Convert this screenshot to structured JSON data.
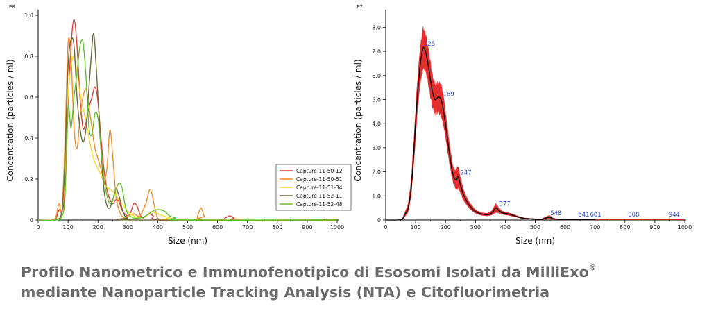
{
  "chart_data": [
    {
      "type": "line",
      "xlabel": "Size (nm)",
      "ylabel": "Concentration (particles / ml)",
      "y_exponent": "E8",
      "xlim": [
        0,
        1000
      ],
      "ylim": [
        0,
        1.0
      ],
      "x_ticks": [
        "0",
        "100",
        "200",
        "300",
        "400",
        "500",
        "600",
        "700",
        "800",
        "900",
        "1000"
      ],
      "y_ticks": [
        "0",
        "0.2",
        "0.4",
        "0.6",
        "0.8",
        "1.0"
      ],
      "legend_position": "bottom-right",
      "series": [
        {
          "name": "Capture-11-50-12",
          "color": "#e53935",
          "points": [
            [
              0,
              0
            ],
            [
              50,
              0
            ],
            [
              60,
              0.01
            ],
            [
              70,
              0.05
            ],
            [
              80,
              0.04
            ],
            [
              90,
              0.15
            ],
            [
              100,
              0.55
            ],
            [
              110,
              0.85
            ],
            [
              120,
              0.98
            ],
            [
              130,
              0.85
            ],
            [
              140,
              0.6
            ],
            [
              150,
              0.45
            ],
            [
              160,
              0.48
            ],
            [
              170,
              0.55
            ],
            [
              180,
              0.6
            ],
            [
              190,
              0.65
            ],
            [
              200,
              0.58
            ],
            [
              210,
              0.4
            ],
            [
              220,
              0.25
            ],
            [
              230,
              0.15
            ],
            [
              240,
              0.1
            ],
            [
              250,
              0.08
            ],
            [
              260,
              0.1
            ],
            [
              270,
              0.09
            ],
            [
              280,
              0.05
            ],
            [
              290,
              0.03
            ],
            [
              300,
              0.02
            ],
            [
              310,
              0.04
            ],
            [
              320,
              0.08
            ],
            [
              330,
              0.07
            ],
            [
              340,
              0.03
            ],
            [
              350,
              0.01
            ],
            [
              370,
              0.03
            ],
            [
              385,
              0.02
            ],
            [
              400,
              0
            ],
            [
              600,
              0
            ],
            [
              625,
              0.01
            ],
            [
              640,
              0.02
            ],
            [
              655,
              0.01
            ],
            [
              670,
              0
            ],
            [
              1000,
              0
            ]
          ]
        },
        {
          "name": "Capture-11-50-51",
          "color": "#f28c28",
          "points": [
            [
              0,
              0
            ],
            [
              50,
              0
            ],
            [
              60,
              0.02
            ],
            [
              70,
              0.08
            ],
            [
              80,
              0.05
            ],
            [
              90,
              0.4
            ],
            [
              100,
              0.86
            ],
            [
              110,
              0.8
            ],
            [
              120,
              0.45
            ],
            [
              130,
              0.35
            ],
            [
              140,
              0.5
            ],
            [
              150,
              0.6
            ],
            [
              160,
              0.64
            ],
            [
              170,
              0.55
            ],
            [
              180,
              0.45
            ],
            [
              190,
              0.35
            ],
            [
              200,
              0.3
            ],
            [
              210,
              0.25
            ],
            [
              220,
              0.2
            ],
            [
              230,
              0.25
            ],
            [
              240,
              0.44
            ],
            [
              250,
              0.3
            ],
            [
              260,
              0.12
            ],
            [
              270,
              0.05
            ],
            [
              280,
              0.02
            ],
            [
              290,
              0.01
            ],
            [
              300,
              0.02
            ],
            [
              320,
              0.03
            ],
            [
              340,
              0.02
            ],
            [
              360,
              0.08
            ],
            [
              375,
              0.15
            ],
            [
              390,
              0.06
            ],
            [
              400,
              0.01
            ],
            [
              420,
              0
            ],
            [
              520,
              0
            ],
            [
              535,
              0.03
            ],
            [
              545,
              0.06
            ],
            [
              555,
              0.02
            ],
            [
              565,
              0
            ],
            [
              1000,
              0
            ]
          ]
        },
        {
          "name": "Capture-11-51-34",
          "color": "#f2dc27",
          "points": [
            [
              0,
              0
            ],
            [
              60,
              0
            ],
            [
              80,
              0.05
            ],
            [
              90,
              0.25
            ],
            [
              100,
              0.6
            ],
            [
              110,
              0.75
            ],
            [
              120,
              0.8
            ],
            [
              130,
              0.72
            ],
            [
              140,
              0.62
            ],
            [
              150,
              0.55
            ],
            [
              160,
              0.48
            ],
            [
              170,
              0.4
            ],
            [
              180,
              0.33
            ],
            [
              190,
              0.28
            ],
            [
              200,
              0.25
            ],
            [
              210,
              0.22
            ],
            [
              220,
              0.18
            ],
            [
              230,
              0.16
            ],
            [
              240,
              0.15
            ],
            [
              250,
              0.14
            ],
            [
              260,
              0.12
            ],
            [
              270,
              0.1
            ],
            [
              280,
              0.08
            ],
            [
              290,
              0.06
            ],
            [
              300,
              0.04
            ],
            [
              320,
              0.02
            ],
            [
              340,
              0.01
            ],
            [
              360,
              0.02
            ],
            [
              380,
              0.04
            ],
            [
              400,
              0.03
            ],
            [
              420,
              0.02
            ],
            [
              440,
              0.01
            ],
            [
              460,
              0
            ],
            [
              1000,
              0
            ]
          ]
        },
        {
          "name": "Capture-11-52-11",
          "color": "#6b6a38",
          "points": [
            [
              0,
              0
            ],
            [
              60,
              0
            ],
            [
              80,
              0.05
            ],
            [
              90,
              0.3
            ],
            [
              100,
              0.75
            ],
            [
              110,
              0.88
            ],
            [
              120,
              0.85
            ],
            [
              130,
              0.6
            ],
            [
              140,
              0.45
            ],
            [
              150,
              0.38
            ],
            [
              160,
              0.45
            ],
            [
              170,
              0.65
            ],
            [
              180,
              0.85
            ],
            [
              185,
              0.91
            ],
            [
              190,
              0.85
            ],
            [
              200,
              0.6
            ],
            [
              210,
              0.35
            ],
            [
              220,
              0.15
            ],
            [
              230,
              0.07
            ],
            [
              240,
              0.06
            ],
            [
              250,
              0.1
            ],
            [
              260,
              0.15
            ],
            [
              270,
              0.12
            ],
            [
              280,
              0.06
            ],
            [
              290,
              0.02
            ],
            [
              300,
              0.01
            ],
            [
              320,
              0
            ],
            [
              1000,
              0
            ]
          ]
        },
        {
          "name": "Capture-11-52-48",
          "color": "#62c02e",
          "points": [
            [
              0,
              0
            ],
            [
              60,
              0
            ],
            [
              80,
              0.02
            ],
            [
              90,
              0.12
            ],
            [
              100,
              0.55
            ],
            [
              110,
              0.45
            ],
            [
              120,
              0.6
            ],
            [
              130,
              0.72
            ],
            [
              140,
              0.85
            ],
            [
              150,
              0.87
            ],
            [
              160,
              0.7
            ],
            [
              170,
              0.45
            ],
            [
              180,
              0.42
            ],
            [
              190,
              0.52
            ],
            [
              200,
              0.5
            ],
            [
              210,
              0.35
            ],
            [
              220,
              0.2
            ],
            [
              230,
              0.12
            ],
            [
              240,
              0.08
            ],
            [
              250,
              0.1
            ],
            [
              260,
              0.15
            ],
            [
              270,
              0.18
            ],
            [
              280,
              0.16
            ],
            [
              290,
              0.08
            ],
            [
              300,
              0.03
            ],
            [
              320,
              0.01
            ],
            [
              340,
              0.01
            ],
            [
              360,
              0.02
            ],
            [
              380,
              0.04
            ],
            [
              395,
              0.05
            ],
            [
              410,
              0.05
            ],
            [
              425,
              0.04
            ],
            [
              440,
              0.02
            ],
            [
              460,
              0.01
            ],
            [
              480,
              0
            ],
            [
              1000,
              0
            ]
          ]
        }
      ]
    },
    {
      "type": "area",
      "xlabel": "Size (nm)",
      "ylabel": "Concentration (particles / ml)",
      "y_exponent": "E7",
      "xlim": [
        0,
        1000
      ],
      "ylim": [
        0,
        8.5
      ],
      "x_ticks": [
        "0",
        "100",
        "200",
        "300",
        "400",
        "500",
        "600",
        "700",
        "800",
        "900",
        "1000"
      ],
      "y_ticks": [
        "0",
        "1.0",
        "2.0",
        "3.0",
        "4.0",
        "5.0",
        "6.0",
        "7.0",
        "8.0"
      ],
      "mean_color": "#000000",
      "error_color": "#e52e2e",
      "mean": [
        [
          0,
          0
        ],
        [
          40,
          0
        ],
        [
          55,
          0.03
        ],
        [
          65,
          0.25
        ],
        [
          75,
          0.5
        ],
        [
          85,
          1.3
        ],
        [
          95,
          3.0
        ],
        [
          105,
          5.0
        ],
        [
          115,
          6.4
        ],
        [
          125,
          7.15
        ],
        [
          135,
          6.9
        ],
        [
          145,
          6.2
        ],
        [
          155,
          5.4
        ],
        [
          165,
          5.0
        ],
        [
          175,
          5.1
        ],
        [
          185,
          5.0
        ],
        [
          195,
          4.4
        ],
        [
          205,
          3.5
        ],
        [
          215,
          2.6
        ],
        [
          225,
          1.9
        ],
        [
          235,
          1.65
        ],
        [
          242,
          1.8
        ],
        [
          250,
          1.45
        ],
        [
          260,
          1.05
        ],
        [
          270,
          0.8
        ],
        [
          280,
          0.6
        ],
        [
          300,
          0.35
        ],
        [
          320,
          0.25
        ],
        [
          340,
          0.22
        ],
        [
          355,
          0.3
        ],
        [
          368,
          0.5
        ],
        [
          378,
          0.4
        ],
        [
          390,
          0.3
        ],
        [
          410,
          0.25
        ],
        [
          430,
          0.18
        ],
        [
          450,
          0.1
        ],
        [
          470,
          0.06
        ],
        [
          500,
          0.04
        ],
        [
          520,
          0.03
        ],
        [
          535,
          0.08
        ],
        [
          548,
          0.12
        ],
        [
          560,
          0.05
        ],
        [
          580,
          0.02
        ],
        [
          620,
          0.01
        ],
        [
          650,
          0.01
        ],
        [
          700,
          0.01
        ],
        [
          800,
          0.005
        ],
        [
          1000,
          0
        ]
      ],
      "error": [
        [
          0,
          0
        ],
        [
          40,
          0
        ],
        [
          55,
          0.02
        ],
        [
          65,
          0.1
        ],
        [
          75,
          0.2
        ],
        [
          85,
          0.35
        ],
        [
          95,
          0.55
        ],
        [
          105,
          0.7
        ],
        [
          115,
          0.9
        ],
        [
          125,
          1.0
        ],
        [
          135,
          0.9
        ],
        [
          145,
          0.8
        ],
        [
          155,
          0.75
        ],
        [
          165,
          0.7
        ],
        [
          175,
          0.7
        ],
        [
          185,
          0.75
        ],
        [
          195,
          0.7
        ],
        [
          205,
          0.55
        ],
        [
          215,
          0.45
        ],
        [
          225,
          0.35
        ],
        [
          235,
          0.4
        ],
        [
          242,
          0.55
        ],
        [
          250,
          0.35
        ],
        [
          260,
          0.25
        ],
        [
          270,
          0.18
        ],
        [
          280,
          0.15
        ],
        [
          300,
          0.08
        ],
        [
          320,
          0.06
        ],
        [
          340,
          0.06
        ],
        [
          355,
          0.1
        ],
        [
          368,
          0.22
        ],
        [
          378,
          0.12
        ],
        [
          390,
          0.07
        ],
        [
          410,
          0.06
        ],
        [
          430,
          0.05
        ],
        [
          450,
          0.03
        ],
        [
          470,
          0.02
        ],
        [
          500,
          0.01
        ],
        [
          520,
          0.01
        ],
        [
          535,
          0.06
        ],
        [
          548,
          0.08
        ],
        [
          560,
          0.03
        ],
        [
          580,
          0.01
        ],
        [
          620,
          0.01
        ],
        [
          1000,
          0
        ]
      ],
      "peak_labels": [
        {
          "x": 125,
          "y": 7.15,
          "label": "125"
        },
        {
          "x": 189,
          "y": 5.05,
          "label": "189"
        },
        {
          "x": 247,
          "y": 1.8,
          "label": "247"
        },
        {
          "x": 377,
          "y": 0.5,
          "label": "377"
        },
        {
          "x": 548,
          "y": 0.12,
          "label": "548"
        },
        {
          "x": 641,
          "y": 0.01,
          "label": "641"
        },
        {
          "x": 681,
          "y": 0.01,
          "label": "681"
        },
        {
          "x": 808,
          "y": 0.005,
          "label": "808"
        },
        {
          "x": 944,
          "y": 0.005,
          "label": "944"
        }
      ]
    }
  ],
  "caption": {
    "line1": "Profilo Nanometrico e Immunofenotipico di Esosomi Isolati da MilliExo",
    "registered": "®",
    "line2": "mediante Nanoparticle Tracking Analysis (NTA) e Citofluorimetria"
  }
}
